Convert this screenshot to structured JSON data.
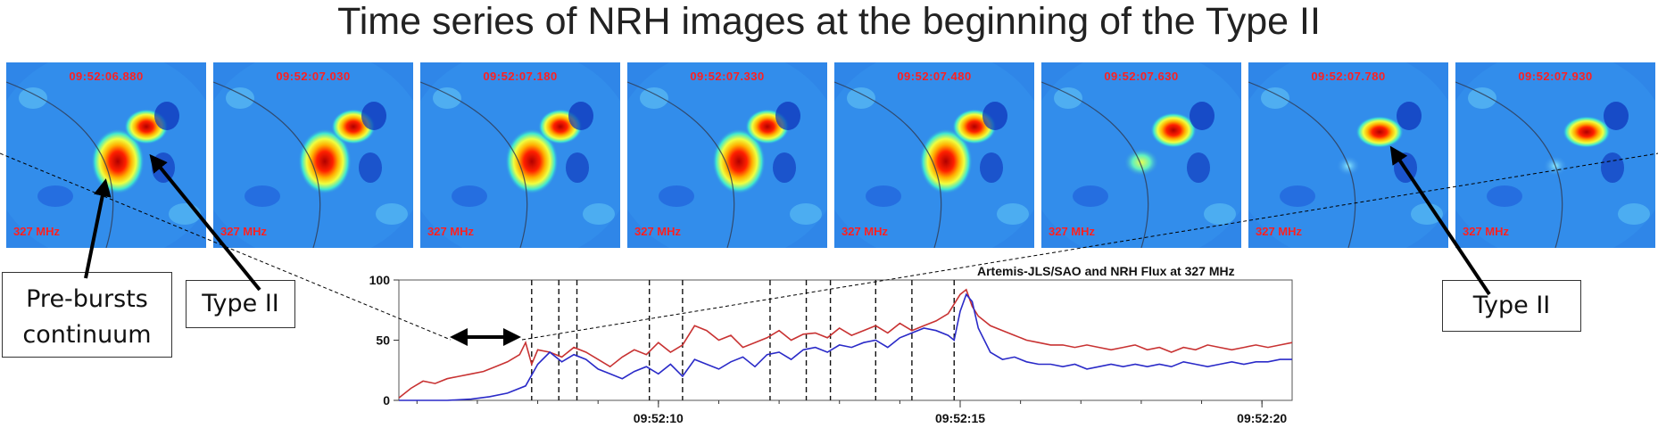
{
  "slide": {
    "title": "Time series of NRH images at the beginning of the Type II"
  },
  "panels": [
    {
      "time": "09:52:06.880",
      "freq": "327 MHz",
      "state": "pre"
    },
    {
      "time": "09:52:07.030",
      "freq": "327 MHz",
      "state": "pre"
    },
    {
      "time": "09:52:07.180",
      "freq": "327 MHz",
      "state": "pre"
    },
    {
      "time": "09:52:07.330",
      "freq": "327 MHz",
      "state": "pre"
    },
    {
      "time": "09:52:07.480",
      "freq": "327 MHz",
      "state": "pre"
    },
    {
      "time": "09:52:07.630",
      "freq": "327 MHz",
      "state": "fade"
    },
    {
      "time": "09:52:07.780",
      "freq": "327 MHz",
      "state": "post"
    },
    {
      "time": "09:52:07.930",
      "freq": "327 MHz",
      "state": "post"
    }
  ],
  "callouts": {
    "pre_bursts": "Pre-bursts continuum",
    "type2_left": "Type II",
    "type2_right": "Type II"
  },
  "colors": {
    "red_series": "#c83232",
    "blue_series": "#2a2ac8",
    "panel_bg": "#2f86e8",
    "label_red": "#ff2020"
  },
  "chart_data": {
    "type": "line",
    "title": "Artemis-JLS/SAO and NRH Flux at 327 MHz",
    "xlabel": "",
    "ylabel": "",
    "xlim": [
      5.7,
      20.5
    ],
    "ylim": [
      0,
      100
    ],
    "yticks": [
      0,
      50,
      100
    ],
    "xticks": [
      {
        "label": "09:52:10",
        "value": 10
      },
      {
        "label": "09:52:15",
        "value": 15
      },
      {
        "label": "09:52:20",
        "value": 20
      }
    ],
    "vlines": [
      7.9,
      8.35,
      8.65,
      9.85,
      10.4,
      11.85,
      12.45,
      12.85,
      13.6,
      14.2,
      14.9
    ],
    "series": [
      {
        "color": "#c83232",
        "x": [
          5.7,
          5.9,
          6.1,
          6.3,
          6.5,
          6.7,
          6.9,
          7.1,
          7.3,
          7.5,
          7.7,
          7.8,
          7.9,
          8.0,
          8.2,
          8.4,
          8.6,
          8.8,
          9.0,
          9.2,
          9.4,
          9.6,
          9.8,
          10.0,
          10.2,
          10.4,
          10.6,
          10.8,
          11.0,
          11.2,
          11.4,
          11.6,
          11.8,
          12.0,
          12.2,
          12.4,
          12.6,
          12.8,
          13.0,
          13.2,
          13.4,
          13.6,
          13.8,
          14.0,
          14.2,
          14.4,
          14.6,
          14.8,
          15.0,
          15.1,
          15.2,
          15.3,
          15.5,
          15.7,
          15.9,
          16.1,
          16.3,
          16.5,
          16.7,
          16.9,
          17.1,
          17.3,
          17.5,
          17.7,
          17.9,
          18.1,
          18.3,
          18.5,
          18.7,
          18.9,
          19.1,
          19.3,
          19.5,
          19.7,
          19.9,
          20.1,
          20.3,
          20.5
        ],
        "y": [
          2,
          10,
          16,
          14,
          18,
          20,
          22,
          24,
          28,
          32,
          38,
          48,
          30,
          42,
          40,
          36,
          44,
          40,
          34,
          28,
          36,
          42,
          38,
          48,
          40,
          46,
          62,
          58,
          50,
          54,
          44,
          48,
          52,
          58,
          50,
          55,
          56,
          52,
          60,
          54,
          58,
          62,
          56,
          64,
          58,
          62,
          66,
          72,
          88,
          92,
          78,
          70,
          62,
          58,
          54,
          50,
          48,
          46,
          46,
          44,
          46,
          44,
          42,
          44,
          46,
          42,
          44,
          40,
          44,
          42,
          46,
          44,
          42,
          44,
          46,
          44,
          46,
          48
        ]
      },
      {
        "color": "#2a2ac8",
        "x": [
          5.7,
          6.1,
          6.5,
          6.9,
          7.2,
          7.5,
          7.8,
          8.0,
          8.2,
          8.4,
          8.6,
          8.8,
          9.0,
          9.2,
          9.4,
          9.6,
          9.8,
          10.0,
          10.2,
          10.4,
          10.6,
          10.8,
          11.0,
          11.2,
          11.4,
          11.6,
          11.8,
          12.0,
          12.2,
          12.4,
          12.6,
          12.8,
          13.0,
          13.2,
          13.4,
          13.6,
          13.8,
          14.0,
          14.2,
          14.4,
          14.6,
          14.8,
          14.9,
          15.0,
          15.1,
          15.2,
          15.3,
          15.5,
          15.7,
          15.9,
          16.1,
          16.3,
          16.5,
          16.7,
          16.9,
          17.1,
          17.3,
          17.5,
          17.7,
          17.9,
          18.1,
          18.3,
          18.5,
          18.7,
          18.9,
          19.1,
          19.3,
          19.5,
          19.7,
          19.9,
          20.1,
          20.3,
          20.5
        ],
        "y": [
          0,
          0,
          0,
          1,
          3,
          6,
          12,
          30,
          40,
          32,
          38,
          34,
          26,
          22,
          18,
          24,
          28,
          22,
          30,
          20,
          34,
          30,
          26,
          32,
          36,
          28,
          38,
          40,
          34,
          42,
          44,
          40,
          46,
          44,
          48,
          50,
          44,
          52,
          56,
          60,
          58,
          54,
          50,
          74,
          88,
          82,
          60,
          40,
          34,
          36,
          32,
          30,
          30,
          28,
          30,
          26,
          28,
          30,
          28,
          30,
          28,
          30,
          28,
          32,
          30,
          28,
          30,
          32,
          30,
          32,
          32,
          34,
          34
        ]
      }
    ]
  }
}
